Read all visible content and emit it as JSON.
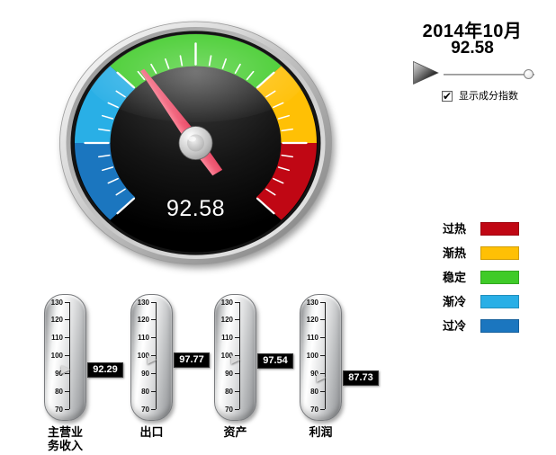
{
  "header": {
    "date": "2014年10月",
    "value_display": "92.58"
  },
  "controls": {
    "slider": {
      "fraction": 0.94
    },
    "checkbox": {
      "checked": true,
      "check_glyph": "✔",
      "label": "显示成分指数"
    }
  },
  "icons": {
    "play": "right-pointing glossy triangle ►",
    "slider_thumb": "small white circle",
    "checkbox_check": "✔",
    "thermometer_pointer": "gray right-pointing triangle ▶"
  },
  "legend": {
    "items": [
      {
        "label": "过热",
        "color": "#C00714"
      },
      {
        "label": "渐热",
        "color": "#FFC005"
      },
      {
        "label": "稳定",
        "color": "#3FCB28"
      },
      {
        "label": "渐冷",
        "color": "#29AFE6"
      },
      {
        "label": "过冷",
        "color": "#1B76BF"
      }
    ]
  },
  "chart_data": [
    {
      "type": "gauge",
      "title": "2014年10月",
      "value": 92.58,
      "min": 70,
      "max": 130,
      "start_angle_deg": 225,
      "sweep_deg": 270,
      "tick_minor_step": 2,
      "tick_major_step": 10,
      "zones": [
        {
          "label": "过冷",
          "from": 70,
          "to": 80,
          "color": "#1B76BF"
        },
        {
          "label": "渐冷",
          "from": 80,
          "to": 90,
          "color": "#29AFE6"
        },
        {
          "label": "稳定",
          "from": 90,
          "to": 110,
          "color": "#3FCB28"
        },
        {
          "label": "渐热",
          "from": 110,
          "to": 120,
          "color": "#FFC005"
        },
        {
          "label": "过热",
          "from": 120,
          "to": 130,
          "color": "#C00714"
        }
      ],
      "needle_color": "#F2566E",
      "center_label": "92.58"
    },
    {
      "type": "bar",
      "subtype": "vertical-thermometer",
      "categories": [
        "主营业\n务收入",
        "出口",
        "资产",
        "利润"
      ],
      "values": [
        92.29,
        97.77,
        97.54,
        87.73
      ],
      "ylim": [
        70,
        130
      ],
      "tick_step": 10,
      "legend_position": "right",
      "grid": false
    }
  ]
}
